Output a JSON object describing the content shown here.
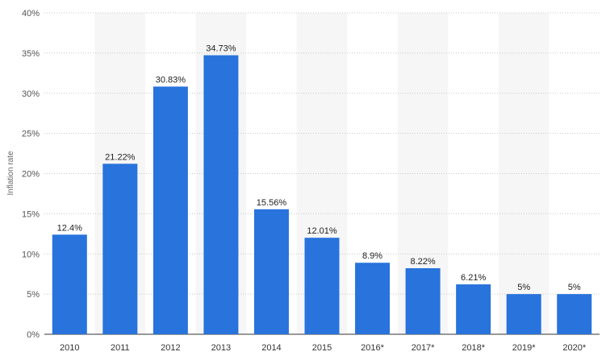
{
  "chart_data": {
    "type": "bar",
    "ylabel": "Inflation rate",
    "categories": [
      "2010",
      "2011",
      "2012",
      "2013",
      "2014",
      "2015",
      "2016*",
      "2017*",
      "2018*",
      "2019*",
      "2020*"
    ],
    "values": [
      12.4,
      21.22,
      30.83,
      34.73,
      15.56,
      12.01,
      8.9,
      8.22,
      6.21,
      5,
      5
    ],
    "data_labels": [
      "12.4%",
      "21.22%",
      "30.83%",
      "34.73%",
      "15.56%",
      "12.01%",
      "8.9%",
      "8.22%",
      "6.21%",
      "5%",
      "5%"
    ],
    "yticks": [
      0,
      5,
      10,
      15,
      20,
      25,
      30,
      35,
      40
    ],
    "ytick_labels": [
      "0%",
      "5%",
      "10%",
      "15%",
      "20%",
      "25%",
      "30%",
      "35%",
      "40%"
    ],
    "ylim": [
      0,
      40
    ],
    "grid": true,
    "bar_color": "#2873dc",
    "band_color": "#f6f6f6"
  }
}
